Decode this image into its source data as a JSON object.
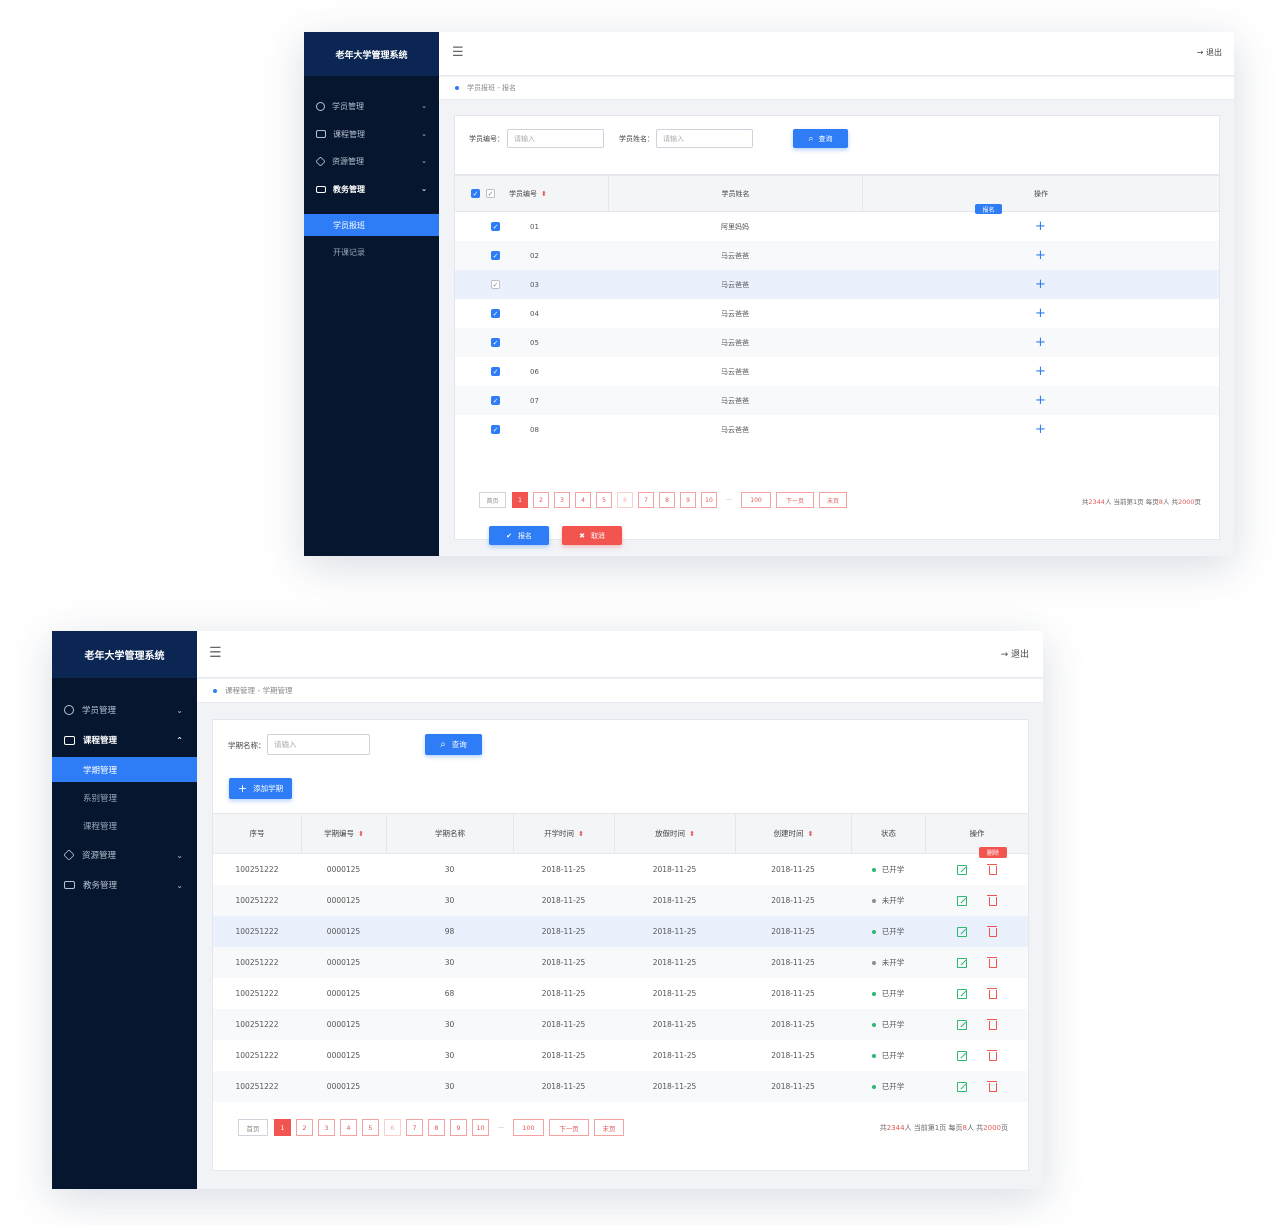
{
  "win1": {
    "brand": "老年大学管理系统",
    "menu": [
      {
        "label": "学员管理",
        "icon": "user-icon"
      },
      {
        "label": "课程管理",
        "icon": "book-icon"
      },
      {
        "label": "资源管理",
        "icon": "box-icon"
      },
      {
        "label": "教务管理",
        "icon": "graduation-cap-icon"
      }
    ],
    "submenu": [
      {
        "label": "学员报班"
      },
      {
        "label": "开课记录"
      }
    ],
    "logout": "退出",
    "breadcrumb": "学员报班 - 报名",
    "filters": {
      "id_label": "学员编号：",
      "id_placeholder": "请输入",
      "name_label": "学员姓名：",
      "name_placeholder": "请输入",
      "query": "查询"
    },
    "columns": [
      "学员编号",
      "学员姓名",
      "操作"
    ],
    "tooltip": "报名",
    "rows": [
      {
        "id": "01",
        "name": "阿里妈妈"
      },
      {
        "id": "02",
        "name": "马云爸爸"
      },
      {
        "id": "03",
        "name": "马云爸爸"
      },
      {
        "id": "04",
        "name": "马云爸爸"
      },
      {
        "id": "05",
        "name": "马云爸爸"
      },
      {
        "id": "06",
        "name": "马云爸爸"
      },
      {
        "id": "07",
        "name": "马云爸爸"
      },
      {
        "id": "08",
        "name": "马云爸爸"
      }
    ],
    "pager": [
      "首页",
      "1",
      "2",
      "3",
      "4",
      "5",
      "6",
      "7",
      "8",
      "9",
      "10",
      "···",
      "100",
      "下一页",
      "末页"
    ],
    "info": {
      "p1": "共",
      "total": "2344",
      "p2": "人 当前第",
      "page": "1",
      "p3": "页 每页",
      "per": "8",
      "p4": "人 共",
      "pages": "2000",
      "p5": "页"
    },
    "ok_button": "报名",
    "cancel_button": "取消"
  },
  "win2": {
    "brand": "老年大学管理系统",
    "menu": [
      {
        "label": "学员管理"
      },
      {
        "label": "课程管理"
      },
      {
        "label": "资源管理"
      },
      {
        "label": "教务管理"
      }
    ],
    "submenu": [
      {
        "label": "学期管理"
      },
      {
        "label": "系别管理"
      },
      {
        "label": "课程管理"
      }
    ],
    "logout": "退出",
    "breadcrumb": "课程管理 - 学期管理",
    "filters": {
      "name_label": "学期名称：",
      "name_placeholder": "请输入",
      "query": "查询",
      "add": "添加学期"
    },
    "columns": [
      "序号",
      "学期编号",
      "学期名称",
      "开学时间",
      "放假时间",
      "创建时间",
      "状态",
      "操作"
    ],
    "tooltip": "删除",
    "rows": [
      {
        "seq": "100251222",
        "code": "0000125",
        "name": "30",
        "start": "2018-11-25",
        "end": "2018-11-25",
        "created": "2018-11-25",
        "status": "已开学"
      },
      {
        "seq": "100251222",
        "code": "0000125",
        "name": "30",
        "start": "2018-11-25",
        "end": "2018-11-25",
        "created": "2018-11-25",
        "status": "未开学"
      },
      {
        "seq": "100251222",
        "code": "0000125",
        "name": "98",
        "start": "2018-11-25",
        "end": "2018-11-25",
        "created": "2018-11-25",
        "status": "已开学"
      },
      {
        "seq": "100251222",
        "code": "0000125",
        "name": "30",
        "start": "2018-11-25",
        "end": "2018-11-25",
        "created": "2018-11-25",
        "status": "未开学"
      },
      {
        "seq": "100251222",
        "code": "0000125",
        "name": "68",
        "start": "2018-11-25",
        "end": "2018-11-25",
        "created": "2018-11-25",
        "status": "已开学"
      },
      {
        "seq": "100251222",
        "code": "0000125",
        "name": "30",
        "start": "2018-11-25",
        "end": "2018-11-25",
        "created": "2018-11-25",
        "status": "已开学"
      },
      {
        "seq": "100251222",
        "code": "0000125",
        "name": "30",
        "start": "2018-11-25",
        "end": "2018-11-25",
        "created": "2018-11-25",
        "status": "已开学"
      },
      {
        "seq": "100251222",
        "code": "0000125",
        "name": "30",
        "start": "2018-11-25",
        "end": "2018-11-25",
        "created": "2018-11-25",
        "status": "已开学"
      }
    ],
    "pager": [
      "首页",
      "1",
      "2",
      "3",
      "4",
      "5",
      "6",
      "7",
      "8",
      "9",
      "10",
      "···",
      "100",
      "下一页",
      "末页"
    ],
    "info": {
      "p1": "共",
      "total": "2344",
      "p2": "人 当前第",
      "page": "1",
      "p3": "页 每页",
      "per": "8",
      "p4": "人 共",
      "pages": "2000",
      "p5": "页"
    }
  },
  "colors": {
    "sidebar": "#06162e",
    "brand_bg": "#0b2653",
    "accent_blue": "#2e7cf6",
    "accent_red": "#f2554f",
    "status_on": "#2eb872",
    "status_off": "#8a8f99"
  }
}
